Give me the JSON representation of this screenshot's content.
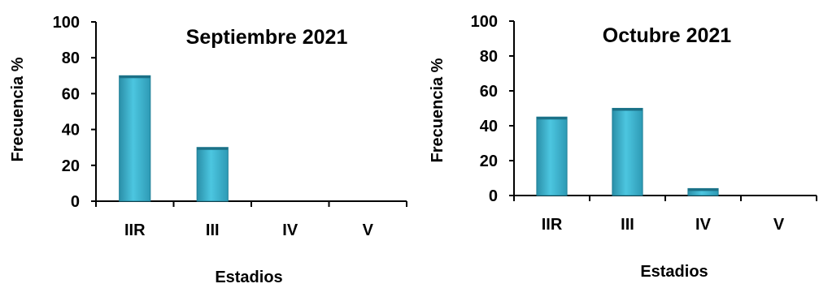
{
  "chart_data": [
    {
      "type": "bar",
      "title": "Septiembre 2021",
      "xlabel": "Estadios",
      "ylabel": "Frecuencia %",
      "categories": [
        "IIR",
        "III",
        "IV",
        "V"
      ],
      "values": [
        70,
        30,
        0,
        0
      ],
      "ylim": [
        0,
        100
      ],
      "yticks": [
        "0",
        "20",
        "40",
        "60",
        "80",
        "100"
      ],
      "grid": false,
      "bar_color": "#3fb3cf"
    },
    {
      "type": "bar",
      "title": "Octubre 2021",
      "xlabel": "Estadios",
      "ylabel": "Frecuencia %",
      "categories": [
        "IIR",
        "III",
        "IV",
        "V"
      ],
      "values": [
        45,
        50,
        4,
        0
      ],
      "ylim": [
        0,
        100
      ],
      "yticks": [
        "0",
        "20",
        "40",
        "60",
        "80",
        "100"
      ],
      "grid": false,
      "bar_color": "#3fb3cf"
    }
  ]
}
